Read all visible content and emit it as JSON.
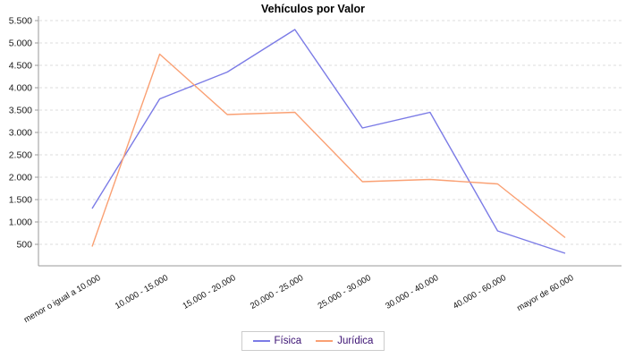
{
  "chart": {
    "title": "Vehículos por Valor"
  },
  "chart_data": {
    "type": "line",
    "title": "Vehículos por Valor",
    "categories": [
      "menor o igual a 10.000",
      "10.000 - 15.000",
      "15.000 - 20.000",
      "20.000 - 25.000",
      "25.000 - 30.000",
      "30.000 - 40.000",
      "40.000 - 60.000",
      "mayor de 60.000"
    ],
    "series": [
      {
        "name": "Física",
        "color": "#7b7be6",
        "values": [
          1300,
          3750,
          4350,
          5300,
          3100,
          3450,
          800,
          300
        ]
      },
      {
        "name": "Jurídica",
        "color": "#faa073",
        "values": [
          450,
          4750,
          3400,
          3450,
          1900,
          1950,
          1850,
          650
        ]
      }
    ],
    "ylim": [
      0,
      5650
    ],
    "y_ticks": {
      "values": [
        500,
        1000,
        1500,
        2000,
        2500,
        3000,
        3500,
        4000,
        4500,
        5000,
        5500
      ],
      "labels": [
        "500",
        "1.000",
        "1.500",
        "2.000",
        "2.500",
        "3.000",
        "3.500",
        "4.000",
        "4.500",
        "5.000",
        "5.500"
      ]
    },
    "grid": true,
    "legend_position": "bottom"
  },
  "colors": {
    "grid": "#dddddd",
    "axis": "#9a9a9a",
    "tick_label": "#1a1a1a",
    "category_label": "#111111",
    "legend_text": "#3b1273",
    "legend_border": "#cccccc",
    "title": "#000000"
  }
}
